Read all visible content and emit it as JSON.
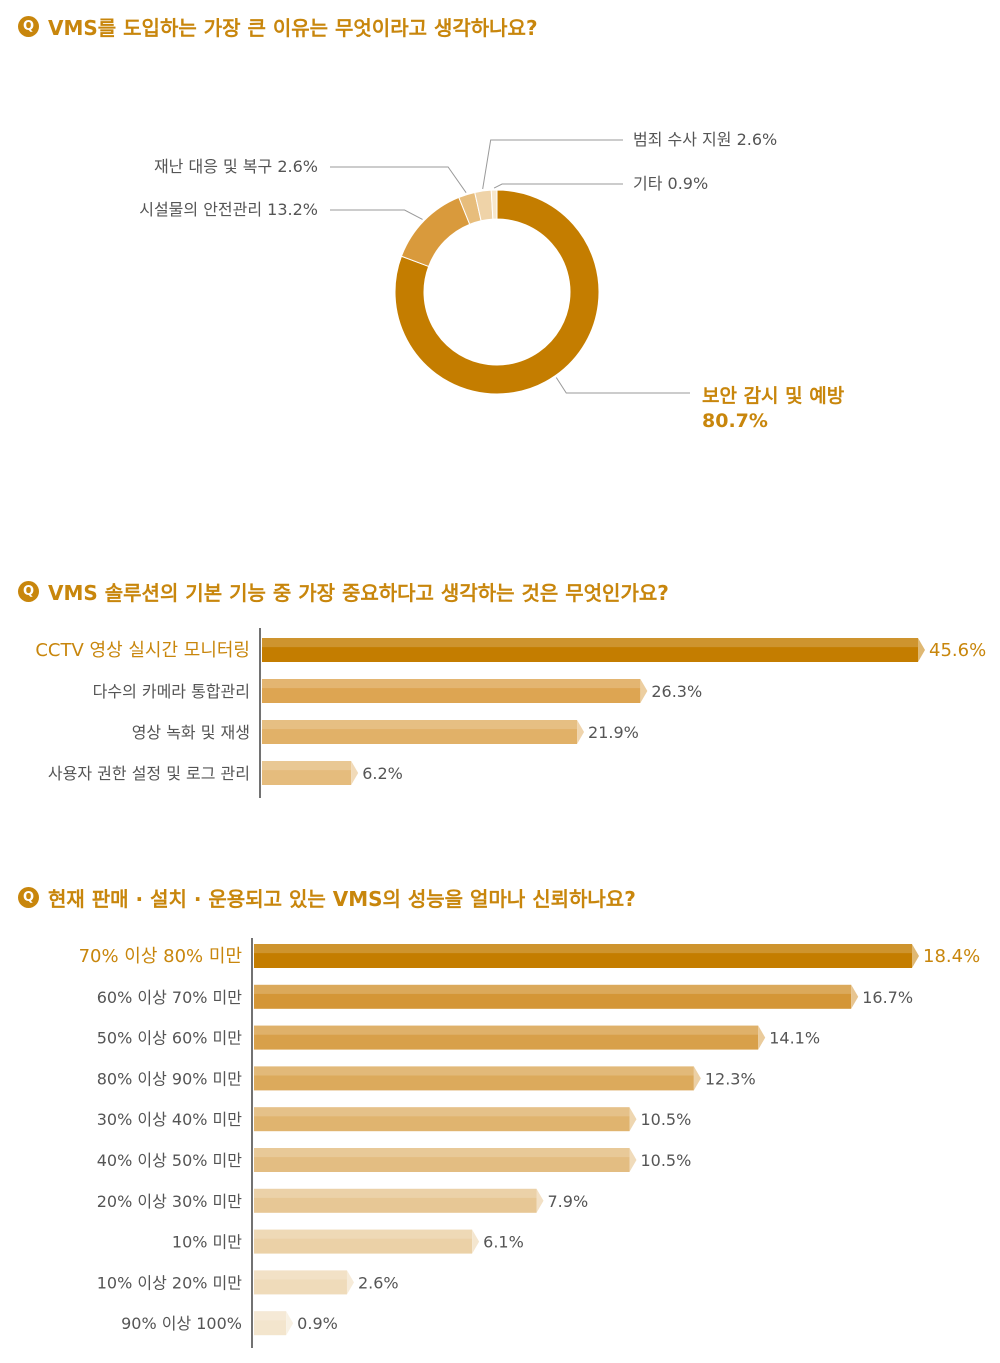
{
  "charts": [
    {
      "question_badge": "Q",
      "question": "VMS를 도입하는 가장 큰 이유는 무엇이라고 생각하나요?"
    },
    {
      "question_badge": "Q",
      "question": "VMS 솔루션의 기본 기능 중 가장 중요하다고 생각하는 것은 무엇인가요?"
    },
    {
      "question_badge": "Q",
      "question": "현재 판매 · 설치 · 운용되고 있는 VMS의 성능을 얼마나 신뢰하나요?"
    }
  ],
  "colors": {
    "accent": "#c8860c",
    "pie": [
      "#c47d00",
      "#d99a3c",
      "#e7bd7c",
      "#efd3a8",
      "#f7e7cc"
    ],
    "bar_scale_light": "#f3e5cd"
  },
  "chart_data": [
    {
      "type": "pie",
      "style": "donut",
      "title": "VMS를 도입하는 가장 큰 이유는 무엇이라고 생각하나요?",
      "slices": [
        {
          "label": "보안 감시 및 예방",
          "value": 80.7,
          "value_text": "80.7%"
        },
        {
          "label": "시설물의 안전관리",
          "value": 13.2,
          "value_text": "13.2%"
        },
        {
          "label": "재난 대응 및 복구",
          "value": 2.6,
          "value_text": "2.6%"
        },
        {
          "label": "범죄 수사 지원",
          "value": 2.6,
          "value_text": "2.6%"
        },
        {
          "label": "기타",
          "value": 0.9,
          "value_text": "0.9%"
        }
      ]
    },
    {
      "type": "bar",
      "orientation": "horizontal",
      "title": "VMS 솔루션의 기본 기능 중 가장 중요하다고 생각하는 것은 무엇인가요?",
      "categories": [
        "CCTV 영상 실시간 모니터링",
        "다수의 카메라 통합관리",
        "영상 녹화 및 재생",
        "사용자 권한 설정 및 로그 관리"
      ],
      "values": [
        45.6,
        26.3,
        21.9,
        6.2
      ],
      "value_labels": [
        "45.6%",
        "26.3%",
        "21.9%",
        "6.2%"
      ],
      "xlim": [
        0,
        45.6
      ],
      "highlight": 0
    },
    {
      "type": "bar",
      "orientation": "horizontal",
      "title": "현재 판매 · 설치 · 운용되고 있는 VMS의 성능을 얼마나 신뢰하나요?",
      "categories": [
        "70% 이상 80% 미만",
        "60% 이상 70% 미만",
        "50% 이상 60% 미만",
        "80% 이상 90% 미만",
        "30% 이상 40% 미만",
        "40% 이상 50% 미만",
        "20% 이상 30% 미만",
        "10% 미만",
        "10% 이상 20% 미만",
        "90% 이상 100%"
      ],
      "values": [
        18.4,
        16.7,
        14.1,
        12.3,
        10.5,
        10.5,
        7.9,
        6.1,
        2.6,
        0.9
      ],
      "value_labels": [
        "18.4%",
        "16.7%",
        "14.1%",
        "12.3%",
        "10.5%",
        "10.5%",
        "7.9%",
        "6.1%",
        "2.6%",
        "0.9%"
      ],
      "xlim": [
        0,
        18.4
      ],
      "highlight": 0
    }
  ]
}
